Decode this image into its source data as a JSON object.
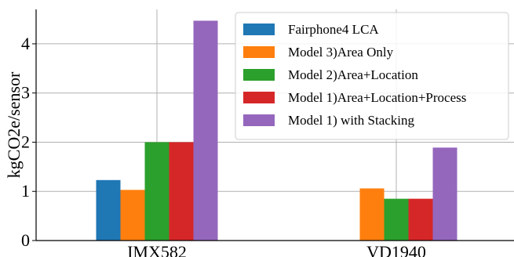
{
  "chart_data": {
    "type": "bar",
    "categories": [
      "IMX582",
      "VD1940"
    ],
    "series": [
      {
        "name": "Fairphone4 LCA",
        "values": [
          1.23,
          0
        ],
        "color": "#1f77b4"
      },
      {
        "name": "Model 3)Area Only",
        "values": [
          1.03,
          1.06
        ],
        "color": "#ff7f0e"
      },
      {
        "name": "Model 2)Area+Location",
        "values": [
          2.0,
          0.85
        ],
        "color": "#2ca02c"
      },
      {
        "name": "Model 1)Area+Location+Process",
        "values": [
          2.0,
          0.85
        ],
        "color": "#d62728"
      },
      {
        "name": "Model 1) with Stacking",
        "values": [
          4.47,
          1.89
        ],
        "color": "#9467bd"
      }
    ],
    "ylabel": "kgCO2e/sensor",
    "xlabel": "",
    "ylim": [
      0,
      4.7
    ],
    "yticks": [
      0,
      1,
      2,
      3,
      4
    ],
    "grid": true,
    "legend_position": "top-right"
  }
}
